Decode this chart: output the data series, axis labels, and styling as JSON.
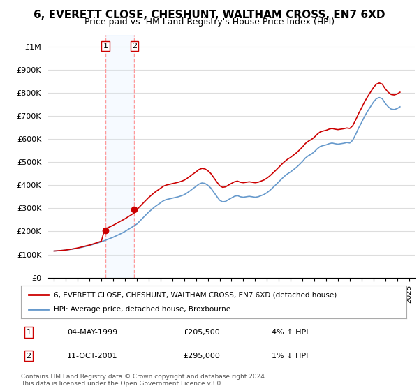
{
  "title": "6, EVERETT CLOSE, CHESHUNT, WALTHAM CROSS, EN7 6XD",
  "subtitle": "Price paid vs. HM Land Registry's House Price Index (HPI)",
  "legend_label_red": "6, EVERETT CLOSE, CHESHUNT, WALTHAM CROSS, EN7 6XD (detached house)",
  "legend_label_blue": "HPI: Average price, detached house, Broxbourne",
  "footnote": "Contains HM Land Registry data © Crown copyright and database right 2024.\nThis data is licensed under the Open Government Licence v3.0.",
  "transactions": [
    {
      "label": "1",
      "date": "04-MAY-1999",
      "price": 205500,
      "hpi_diff": "4% ↑ HPI",
      "x": 1999.35
    },
    {
      "label": "2",
      "date": "11-OCT-2001",
      "price": 295000,
      "hpi_diff": "1% ↓ HPI",
      "x": 2001.78
    }
  ],
  "ylim": [
    0,
    1050000
  ],
  "yticks": [
    0,
    100000,
    200000,
    300000,
    400000,
    500000,
    600000,
    700000,
    800000,
    900000,
    1000000
  ],
  "ytick_labels": [
    "£0",
    "£100K",
    "£200K",
    "£300K",
    "£400K",
    "£500K",
    "£600K",
    "£700K",
    "£800K",
    "£900K",
    "£1M"
  ],
  "xlim_start": 1994.5,
  "xlim_end": 2025.5,
  "xticks": [
    1995,
    1996,
    1997,
    1998,
    1999,
    2000,
    2001,
    2002,
    2003,
    2004,
    2005,
    2006,
    2007,
    2008,
    2009,
    2010,
    2011,
    2012,
    2013,
    2014,
    2015,
    2016,
    2017,
    2018,
    2019,
    2020,
    2021,
    2022,
    2023,
    2024,
    2025
  ],
  "red_color": "#cc0000",
  "blue_color": "#6699cc",
  "dot_color": "#cc0000",
  "vline_color": "#ff9999",
  "highlight_color": "#ddeeff",
  "background_color": "#ffffff",
  "grid_color": "#dddddd",
  "title_fontsize": 11,
  "subtitle_fontsize": 9,
  "hpi_data_x": [
    1995.0,
    1995.25,
    1995.5,
    1995.75,
    1996.0,
    1996.25,
    1996.5,
    1996.75,
    1997.0,
    1997.25,
    1997.5,
    1997.75,
    1998.0,
    1998.25,
    1998.5,
    1998.75,
    1999.0,
    1999.25,
    1999.5,
    1999.75,
    2000.0,
    2000.25,
    2000.5,
    2000.75,
    2001.0,
    2001.25,
    2001.5,
    2001.75,
    2002.0,
    2002.25,
    2002.5,
    2002.75,
    2003.0,
    2003.25,
    2003.5,
    2003.75,
    2004.0,
    2004.25,
    2004.5,
    2004.75,
    2005.0,
    2005.25,
    2005.5,
    2005.75,
    2006.0,
    2006.25,
    2006.5,
    2006.75,
    2007.0,
    2007.25,
    2007.5,
    2007.75,
    2008.0,
    2008.25,
    2008.5,
    2008.75,
    2009.0,
    2009.25,
    2009.5,
    2009.75,
    2010.0,
    2010.25,
    2010.5,
    2010.75,
    2011.0,
    2011.25,
    2011.5,
    2011.75,
    2012.0,
    2012.25,
    2012.5,
    2012.75,
    2013.0,
    2013.25,
    2013.5,
    2013.75,
    2014.0,
    2014.25,
    2014.5,
    2014.75,
    2015.0,
    2015.25,
    2015.5,
    2015.75,
    2016.0,
    2016.25,
    2016.5,
    2016.75,
    2017.0,
    2017.25,
    2017.5,
    2017.75,
    2018.0,
    2018.25,
    2018.5,
    2018.75,
    2019.0,
    2019.25,
    2019.5,
    2019.75,
    2020.0,
    2020.25,
    2020.5,
    2020.75,
    2021.0,
    2021.25,
    2021.5,
    2021.75,
    2022.0,
    2022.25,
    2022.5,
    2022.75,
    2023.0,
    2023.25,
    2023.5,
    2023.75,
    2024.0,
    2024.25
  ],
  "hpi_data_y": [
    115000,
    116000,
    117000,
    118000,
    119000,
    121000,
    123000,
    125000,
    127000,
    130000,
    133000,
    136000,
    139000,
    143000,
    147000,
    151000,
    155000,
    160000,
    165000,
    170000,
    175000,
    181000,
    187000,
    193000,
    200000,
    208000,
    216000,
    224000,
    232000,
    245000,
    258000,
    271000,
    284000,
    295000,
    306000,
    315000,
    324000,
    333000,
    338000,
    341000,
    344000,
    347000,
    350000,
    354000,
    359000,
    367000,
    376000,
    386000,
    395000,
    405000,
    410000,
    408000,
    400000,
    388000,
    370000,
    352000,
    335000,
    328000,
    330000,
    338000,
    345000,
    352000,
    355000,
    350000,
    348000,
    350000,
    352000,
    350000,
    348000,
    350000,
    355000,
    360000,
    368000,
    378000,
    390000,
    402000,
    415000,
    428000,
    440000,
    450000,
    458000,
    468000,
    478000,
    490000,
    503000,
    518000,
    528000,
    535000,
    545000,
    558000,
    568000,
    572000,
    575000,
    580000,
    583000,
    580000,
    578000,
    580000,
    582000,
    585000,
    583000,
    595000,
    620000,
    648000,
    672000,
    698000,
    720000,
    740000,
    760000,
    775000,
    780000,
    775000,
    755000,
    740000,
    730000,
    728000,
    732000,
    740000
  ],
  "red_data_x": [
    1995.0,
    1995.25,
    1995.5,
    1995.75,
    1996.0,
    1996.25,
    1996.5,
    1996.75,
    1997.0,
    1997.25,
    1997.5,
    1997.75,
    1998.0,
    1998.25,
    1998.5,
    1998.75,
    1999.0,
    1999.25,
    1999.5,
    1999.75,
    2000.0,
    2000.25,
    2000.5,
    2000.75,
    2001.0,
    2001.25,
    2001.5,
    2001.75,
    2002.0,
    2002.25,
    2002.5,
    2002.75,
    2003.0,
    2003.25,
    2003.5,
    2003.75,
    2004.0,
    2004.25,
    2004.5,
    2004.75,
    2005.0,
    2005.25,
    2005.5,
    2005.75,
    2006.0,
    2006.25,
    2006.5,
    2006.75,
    2007.0,
    2007.25,
    2007.5,
    2007.75,
    2008.0,
    2008.25,
    2008.5,
    2008.75,
    2009.0,
    2009.25,
    2009.5,
    2009.75,
    2010.0,
    2010.25,
    2010.5,
    2010.75,
    2011.0,
    2011.25,
    2011.5,
    2011.75,
    2012.0,
    2012.25,
    2012.5,
    2012.75,
    2013.0,
    2013.25,
    2013.5,
    2013.75,
    2014.0,
    2014.25,
    2014.5,
    2014.75,
    2015.0,
    2015.25,
    2015.5,
    2015.75,
    2016.0,
    2016.25,
    2016.5,
    2016.75,
    2017.0,
    2017.25,
    2017.5,
    2017.75,
    2018.0,
    2018.25,
    2018.5,
    2018.75,
    2019.0,
    2019.25,
    2019.5,
    2019.75,
    2020.0,
    2020.25,
    2020.5,
    2020.75,
    2021.0,
    2021.25,
    2021.5,
    2021.75,
    2022.0,
    2022.25,
    2022.5,
    2022.75,
    2023.0,
    2023.25,
    2023.5,
    2023.75,
    2024.0,
    2024.25
  ],
  "red_data_y": [
    115000,
    116000,
    117000,
    118000,
    119500,
    121500,
    123500,
    126000,
    128500,
    131500,
    134500,
    138000,
    141000,
    145000,
    149000,
    153500,
    158000,
    205500,
    215000,
    221000,
    227000,
    234000,
    241000,
    248000,
    255000,
    263000,
    271000,
    279000,
    295000,
    308000,
    321000,
    334000,
    347000,
    358000,
    369000,
    378000,
    387000,
    396000,
    401000,
    404000,
    407000,
    410000,
    413000,
    417000,
    422000,
    430000,
    439000,
    449000,
    458000,
    468000,
    473000,
    471000,
    463000,
    451000,
    433000,
    415000,
    398000,
    391000,
    393000,
    401000,
    408000,
    415000,
    418000,
    413000,
    411000,
    413000,
    415000,
    413000,
    411000,
    413000,
    418000,
    423000,
    431000,
    441000,
    453000,
    465000,
    478000,
    491000,
    503000,
    513000,
    521000,
    531000,
    541000,
    553000,
    566000,
    581000,
    591000,
    598000,
    608000,
    621000,
    631000,
    635000,
    638000,
    643000,
    646000,
    643000,
    641000,
    643000,
    645000,
    648000,
    646000,
    658000,
    683000,
    711000,
    735000,
    761000,
    783000,
    803000,
    823000,
    838000,
    843000,
    838000,
    818000,
    803000,
    793000,
    791000,
    795000,
    803000
  ]
}
